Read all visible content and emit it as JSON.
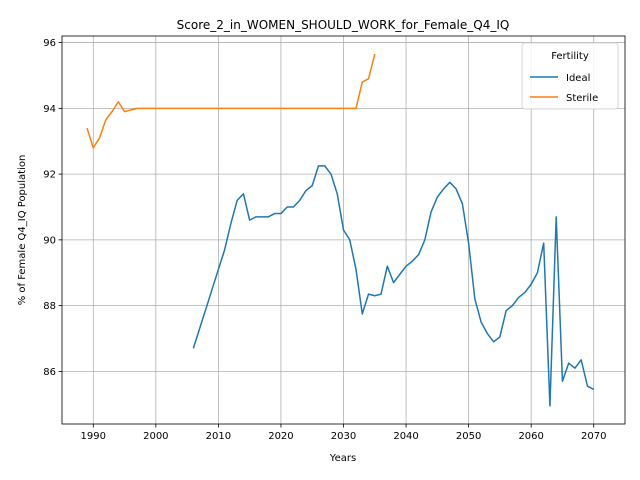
{
  "chart_data": {
    "type": "line",
    "title": "Score_2_in_WOMEN_SHOULD_WORK_for_Female_Q4_IQ",
    "xlabel": "Years",
    "ylabel": "% of Female Q4_IQ Population",
    "xlim": [
      1985,
      2075
    ],
    "ylim": [
      84.4,
      96.2
    ],
    "xticks": [
      1990,
      2000,
      2010,
      2020,
      2030,
      2040,
      2050,
      2060,
      2070
    ],
    "yticks": [
      86,
      88,
      90,
      92,
      94,
      96
    ],
    "grid": true,
    "legend": {
      "title": "Fertility",
      "position": "top-right"
    },
    "series": [
      {
        "name": "Ideal",
        "color": "#1f77b4",
        "x": [
          2006,
          2007,
          2008,
          2009,
          2010,
          2011,
          2012,
          2013,
          2014,
          2015,
          2016,
          2017,
          2018,
          2019,
          2020,
          2021,
          2022,
          2023,
          2024,
          2025,
          2026,
          2027,
          2028,
          2029,
          2030,
          2031,
          2032,
          2033,
          2034,
          2035,
          2036,
          2037,
          2038,
          2039,
          2040,
          2041,
          2042,
          2043,
          2044,
          2045,
          2046,
          2047,
          2048,
          2049,
          2050,
          2051,
          2052,
          2053,
          2054,
          2055,
          2056,
          2057,
          2058,
          2059,
          2060,
          2061,
          2062,
          2063,
          2064,
          2065,
          2066,
          2067,
          2068,
          2069,
          2070
        ],
        "values": [
          86.7,
          87.3,
          87.9,
          88.5,
          89.1,
          89.7,
          90.5,
          91.2,
          91.4,
          90.6,
          90.7,
          90.7,
          90.7,
          90.8,
          90.8,
          91.0,
          91.0,
          91.2,
          91.5,
          91.65,
          92.25,
          92.25,
          92.0,
          91.4,
          90.3,
          90.0,
          89.1,
          87.75,
          88.35,
          88.3,
          88.35,
          89.2,
          88.7,
          88.95,
          89.2,
          89.35,
          89.55,
          90.0,
          90.85,
          91.3,
          91.55,
          91.75,
          91.55,
          91.1,
          89.9,
          88.2,
          87.5,
          87.15,
          86.9,
          87.05,
          87.85,
          88.0,
          88.25,
          88.4,
          88.65,
          89.0,
          89.9,
          84.95,
          90.7,
          85.7,
          86.25,
          86.1,
          86.35,
          85.55,
          85.45
        ]
      },
      {
        "name": "Sterile",
        "color": "#ff7f0e",
        "x": [
          1989,
          1990,
          1991,
          1992,
          1993,
          1994,
          1995,
          1996,
          1997,
          1998,
          1999,
          2000,
          2001,
          2002,
          2003,
          2004,
          2005,
          2006,
          2007,
          2008,
          2009,
          2010,
          2011,
          2012,
          2013,
          2014,
          2015,
          2016,
          2017,
          2018,
          2019,
          2020,
          2021,
          2022,
          2023,
          2024,
          2025,
          2026,
          2027,
          2028,
          2029,
          2030,
          2031,
          2032,
          2033,
          2034,
          2035
        ],
        "values": [
          93.4,
          92.8,
          93.1,
          93.65,
          93.9,
          94.2,
          93.9,
          93.95,
          94.0,
          94.0,
          94.0,
          94.0,
          94.0,
          94.0,
          94.0,
          94.0,
          94.0,
          94.0,
          94.0,
          94.0,
          94.0,
          94.0,
          94.0,
          94.0,
          94.0,
          94.0,
          94.0,
          94.0,
          94.0,
          94.0,
          94.0,
          94.0,
          94.0,
          94.0,
          94.0,
          94.0,
          94.0,
          94.0,
          94.0,
          94.0,
          94.0,
          94.0,
          94.0,
          94.0,
          94.8,
          94.9,
          95.65
        ]
      }
    ]
  }
}
